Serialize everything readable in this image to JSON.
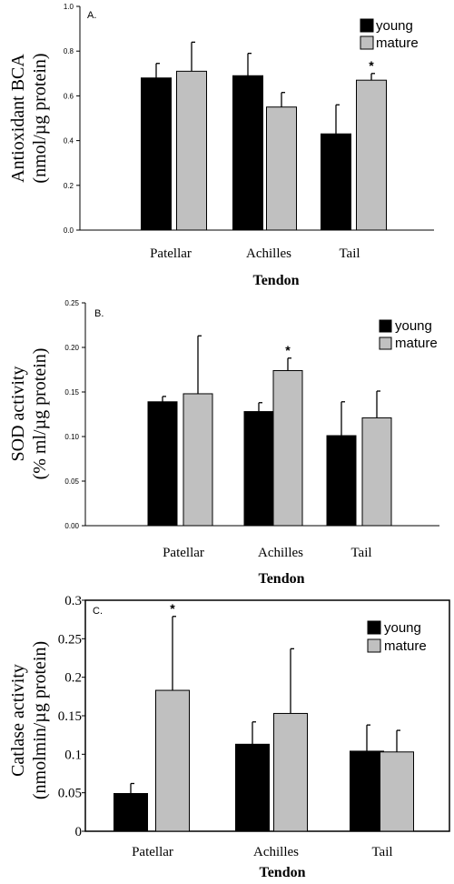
{
  "chart_data": [
    {
      "type": "bar",
      "panel_label": "A.",
      "categories": [
        "Patellar",
        "Achilles",
        "Tail"
      ],
      "series": [
        {
          "name": "young",
          "values": [
            0.68,
            0.69,
            0.43
          ],
          "errors": [
            0.065,
            0.1,
            0.13
          ],
          "color": "#000000"
        },
        {
          "name": "mature",
          "values": [
            0.71,
            0.55,
            0.67
          ],
          "errors": [
            0.13,
            0.065,
            0.03
          ],
          "color": "#c0c0c0"
        }
      ],
      "annotations": [
        {
          "category": "Tail",
          "series": "mature",
          "text": "*"
        }
      ],
      "ylabel": [
        "Antioxidant BCA",
        "(nmol/µg protein)"
      ],
      "xlabel": "Tendon",
      "ylim": [
        0,
        1.0
      ],
      "yticks": [
        "0.0",
        "0.2",
        "0.4",
        "0.6",
        "0.8",
        "1.0"
      ],
      "ytick_values": [
        0,
        0.2,
        0.4,
        0.6,
        0.8,
        1.0
      ],
      "grid": false,
      "legend_position": "top-right"
    },
    {
      "type": "bar",
      "panel_label": "B.",
      "categories": [
        "Patellar",
        "Achilles",
        "Tail"
      ],
      "series": [
        {
          "name": "young",
          "values": [
            0.139,
            0.128,
            0.101
          ],
          "errors": [
            0.006,
            0.01,
            0.038
          ],
          "color": "#000000"
        },
        {
          "name": "mature",
          "values": [
            0.148,
            0.174,
            0.121
          ],
          "errors": [
            0.065,
            0.014,
            0.03
          ],
          "color": "#c0c0c0"
        }
      ],
      "annotations": [
        {
          "category": "Achilles",
          "series": "mature",
          "text": "*"
        }
      ],
      "ylabel": [
        "SOD activity",
        "(% ml/µg protein)"
      ],
      "xlabel": "Tendon",
      "ylim": [
        0,
        0.25
      ],
      "yticks": [
        "0.00",
        "0.05",
        "0.10",
        "0.15",
        "0.20",
        "0.25"
      ],
      "ytick_values": [
        0,
        0.05,
        0.1,
        0.15,
        0.2,
        0.25
      ],
      "grid": false,
      "legend_position": "top-right"
    },
    {
      "type": "bar",
      "panel_label": "C.",
      "categories": [
        "Patellar",
        "Achilles",
        "Tail"
      ],
      "series": [
        {
          "name": "young",
          "values": [
            0.049,
            0.113,
            0.104
          ],
          "errors": [
            0.013,
            0.029,
            0.034
          ],
          "color": "#000000"
        },
        {
          "name": "mature",
          "values": [
            0.183,
            0.153,
            0.103
          ],
          "errors": [
            0.096,
            0.084,
            0.028
          ],
          "color": "#c0c0c0"
        }
      ],
      "annotations": [
        {
          "category": "Patellar",
          "series": "mature",
          "text": "*"
        }
      ],
      "ylabel": [
        "Catlase activity",
        "(nmolmin/µg protein)"
      ],
      "xlabel": "Tendon",
      "ylim": [
        0,
        0.3
      ],
      "yticks": [
        "0",
        "0.05",
        "0.1",
        "0.15",
        "0.2",
        "0.25",
        "0.3"
      ],
      "ytick_values": [
        0,
        0.05,
        0.1,
        0.15,
        0.2,
        0.25,
        0.3
      ],
      "grid": false,
      "legend_position": "top-right"
    }
  ]
}
